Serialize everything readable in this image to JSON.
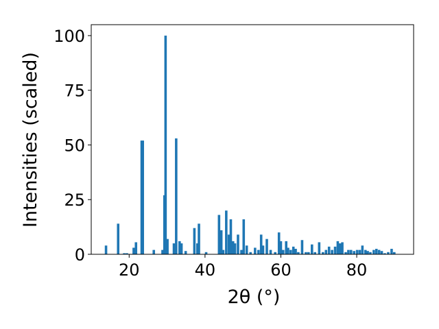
{
  "chart_data": {
    "type": "bar",
    "title": "",
    "xlabel": "2θ (°)",
    "ylabel": "Intensities (scaled)",
    "xlim": [
      10,
      95
    ],
    "ylim": [
      0,
      105
    ],
    "x_ticks": [
      20,
      40,
      60,
      80
    ],
    "y_ticks": [
      0,
      25,
      50,
      75,
      100
    ],
    "grid": false,
    "legend": "none",
    "bar_color": "#1f77b4",
    "bar_width": 0.65,
    "series": [
      {
        "x": [
          13.9,
          17.1,
          18.7,
          19.4,
          21.2,
          21.8,
          23.3,
          23.6,
          26.5,
          28.8,
          29.3,
          29.6,
          30.1,
          31.8,
          32.4,
          33.3,
          33.8,
          34.9,
          37.2,
          38.0,
          38.4,
          40.3,
          43.7,
          44.3,
          44.8,
          45.6,
          46.3,
          46.8,
          47.4,
          47.9,
          48.7,
          49.6,
          50.2,
          51.0,
          52.0,
          53.2,
          54.1,
          54.8,
          55.3,
          56.3,
          57.3,
          58.5,
          59.5,
          60.0,
          60.6,
          61.4,
          61.9,
          62.6,
          63.3,
          63.9,
          64.6,
          65.6,
          66.6,
          67.3,
          68.2,
          69.0,
          70.1,
          71.1,
          71.9,
          72.7,
          73.5,
          74.3,
          75.0,
          75.6,
          76.2,
          77.1,
          77.8,
          78.5,
          79.3,
          80.1,
          80.8,
          81.5,
          82.3,
          82.9,
          83.6,
          84.5,
          85.2,
          85.9,
          86.6,
          87.4,
          88.3,
          89.2,
          89.9
        ],
        "values": [
          4,
          14,
          0.5,
          0.5,
          3,
          5.5,
          52,
          52,
          2,
          2,
          27,
          100,
          7,
          5,
          53,
          6,
          5,
          1.5,
          12,
          5,
          14,
          1,
          18,
          11,
          2,
          20,
          9,
          16,
          6,
          5,
          9,
          2,
          16,
          4,
          1,
          3,
          2,
          9,
          4,
          7,
          2,
          1,
          10,
          6,
          2,
          6,
          3,
          2,
          3.5,
          2.5,
          1,
          6.5,
          1,
          1,
          4.5,
          1,
          5.5,
          1,
          2,
          3.5,
          2,
          3.5,
          6,
          5,
          5.5,
          1,
          2,
          2,
          1.5,
          2,
          2,
          4,
          2,
          1.5,
          1,
          2,
          2.5,
          2,
          1.5,
          0.5,
          1,
          2.5,
          1
        ]
      }
    ]
  }
}
